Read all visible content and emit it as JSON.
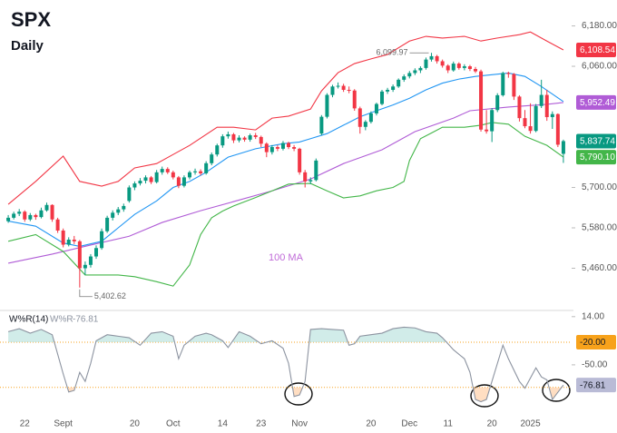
{
  "chart_data": [
    {
      "type": "candlestick",
      "title": "SPX",
      "subtitle": "Daily",
      "up_color": "#089981",
      "down_color": "#f23645",
      "xlim": [
        -1.5,
        102.5
      ],
      "ylim": [
        5340,
        6230
      ],
      "yticks": [
        {
          "value": 6180,
          "label": "6,180.00"
        },
        {
          "value": 6060,
          "label": "6,060.00"
        },
        {
          "value": 5700,
          "label": "5,700.00"
        },
        {
          "value": 5580,
          "label": "5,580.00"
        },
        {
          "value": 5460,
          "label": "5,460.00"
        }
      ],
      "grid": false,
      "high_label": "6,099.97",
      "low_label": "5,402.62",
      "last_close_label": "5,837.74",
      "ohlc": [
        [
          5600,
          5618,
          5595,
          5610
        ],
        [
          5610,
          5628,
          5605,
          5622
        ],
        [
          5622,
          5636,
          5615,
          5628
        ],
        [
          5628,
          5632,
          5598,
          5605
        ],
        [
          5605,
          5624,
          5600,
          5618
        ],
        [
          5618,
          5622,
          5604,
          5612
        ],
        [
          5612,
          5640,
          5608,
          5632
        ],
        [
          5632,
          5655,
          5628,
          5648
        ],
        [
          5648,
          5650,
          5598,
          5605
        ],
        [
          5605,
          5610,
          5565,
          5572
        ],
        [
          5572,
          5578,
          5522,
          5530
        ],
        [
          5530,
          5552,
          5525,
          5545
        ],
        [
          5545,
          5556,
          5532,
          5540
        ],
        [
          5540,
          5544,
          5402.62,
          5460
        ],
        [
          5460,
          5480,
          5440,
          5470
        ],
        [
          5470,
          5502,
          5462,
          5495
        ],
        [
          5495,
          5528,
          5488,
          5520
        ],
        [
          5520,
          5578,
          5515,
          5570
        ],
        [
          5570,
          5616,
          5565,
          5610
        ],
        [
          5610,
          5632,
          5602,
          5625
        ],
        [
          5625,
          5642,
          5618,
          5635
        ],
        [
          5635,
          5652,
          5628,
          5645
        ],
        [
          5660,
          5706,
          5655,
          5700
        ],
        [
          5700,
          5718,
          5692,
          5712
        ],
        [
          5712,
          5728,
          5706,
          5720
        ],
        [
          5720,
          5736,
          5712,
          5730
        ],
        [
          5730,
          5734,
          5710,
          5716
        ],
        [
          5716,
          5752,
          5712,
          5745
        ],
        [
          5745,
          5762,
          5738,
          5755
        ],
        [
          5755,
          5760,
          5740,
          5745
        ],
        [
          5745,
          5750,
          5724,
          5730
        ],
        [
          5730,
          5734,
          5698,
          5705
        ],
        [
          5705,
          5736,
          5700,
          5730
        ],
        [
          5730,
          5750,
          5724,
          5745
        ],
        [
          5745,
          5756,
          5738,
          5748
        ],
        [
          5748,
          5754,
          5736,
          5742
        ],
        [
          5742,
          5778,
          5738,
          5772
        ],
        [
          5772,
          5804,
          5766,
          5798
        ],
        [
          5798,
          5830,
          5792,
          5825
        ],
        [
          5825,
          5858,
          5818,
          5852
        ],
        [
          5852,
          5866,
          5845,
          5858
        ],
        [
          5858,
          5862,
          5832,
          5840
        ],
        [
          5840,
          5855,
          5834,
          5848
        ],
        [
          5848,
          5852,
          5836,
          5842
        ],
        [
          5842,
          5860,
          5836,
          5855
        ],
        [
          5855,
          5862,
          5844,
          5850
        ],
        [
          5850,
          5854,
          5820,
          5830
        ],
        [
          5830,
          5834,
          5790,
          5805
        ],
        [
          5805,
          5826,
          5798,
          5820
        ],
        [
          5820,
          5826,
          5808,
          5815
        ],
        [
          5815,
          5838,
          5810,
          5832
        ],
        [
          5832,
          5836,
          5814,
          5820
        ],
        [
          5820,
          5826,
          5808,
          5815
        ],
        [
          5815,
          5818,
          5738,
          5745
        ],
        [
          5745,
          5752,
          5700,
          5718
        ],
        [
          5718,
          5730,
          5710,
          5722
        ],
        [
          5722,
          5786,
          5718,
          5780
        ],
        [
          5860,
          5915,
          5855,
          5910
        ],
        [
          5910,
          5980,
          5905,
          5975
        ],
        [
          5975,
          6005,
          5968,
          6000
        ],
        [
          6000,
          6012,
          5994,
          6002
        ],
        [
          6002,
          6008,
          5984,
          5990
        ],
        [
          5990,
          6000,
          5980,
          5988
        ],
        [
          5988,
          5992,
          5928,
          5935
        ],
        [
          5935,
          5940,
          5860,
          5880
        ],
        [
          5880,
          5900,
          5870,
          5895
        ],
        [
          5895,
          5926,
          5890,
          5920
        ],
        [
          5920,
          5952,
          5914,
          5948
        ],
        [
          5948,
          5990,
          5944,
          5985
        ],
        [
          5985,
          5996,
          5978,
          5990
        ],
        [
          5990,
          6006,
          5984,
          6000
        ],
        [
          6000,
          6024,
          5996,
          6020
        ],
        [
          6020,
          6036,
          6014,
          6030
        ],
        [
          6030,
          6046,
          6024,
          6040
        ],
        [
          6040,
          6054,
          6034,
          6048
        ],
        [
          6048,
          6060,
          6040,
          6055
        ],
        [
          6055,
          6086,
          6050,
          6080
        ],
        [
          6080,
          6099.97,
          6074,
          6090
        ],
        [
          6090,
          6094,
          6068,
          6075
        ],
        [
          6075,
          6080,
          6056,
          6062
        ],
        [
          6062,
          6066,
          6040,
          6048
        ],
        [
          6048,
          6074,
          6044,
          6068
        ],
        [
          6068,
          6072,
          6050,
          6055
        ],
        [
          6055,
          6066,
          6048,
          6060
        ],
        [
          6060,
          6064,
          6046,
          6052
        ],
        [
          6052,
          6058,
          6040,
          6045
        ],
        [
          6045,
          6050,
          5866,
          5872
        ],
        [
          5872,
          5930,
          5860,
          5867
        ],
        [
          5867,
          5936,
          5835,
          5930
        ],
        [
          5930,
          5980,
          5924,
          5974
        ],
        [
          5974,
          6044,
          5970,
          6040
        ],
        [
          6040,
          6044,
          6026,
          6037
        ],
        [
          6037,
          6040,
          5960,
          5970
        ],
        [
          5970,
          5974,
          5896,
          5906
        ],
        [
          5906,
          5930,
          5876,
          5882
        ],
        [
          5882,
          5950,
          5860,
          5868
        ],
        [
          5868,
          5948,
          5864,
          5942
        ],
        [
          5942,
          6020,
          5936,
          5975
        ],
        [
          5975,
          5990,
          5898,
          5909
        ],
        [
          5909,
          5926,
          5874,
          5918
        ],
        [
          5918,
          5920,
          5820,
          5827
        ],
        [
          5800,
          5842,
          5773,
          5837.74
        ]
      ],
      "series": [
        {
          "color": "#f23645",
          "x": [
            0,
            5,
            10,
            13,
            17,
            20,
            23,
            27,
            30,
            33,
            38,
            41,
            45,
            48,
            51,
            55,
            57,
            60,
            63,
            66,
            69,
            73,
            76,
            79,
            83,
            86,
            89,
            93,
            95,
            98,
            101
          ],
          "values": [
            5650,
            5718,
            5793,
            5718,
            5704,
            5718,
            5758,
            5771,
            5798,
            5825,
            5879,
            5879,
            5871,
            5906,
            5912,
            5933,
            5987,
            6041,
            6068,
            6082,
            6095,
            6135,
            6149,
            6144,
            6149,
            6135,
            6144,
            6154,
            6162,
            6135,
            6108.54
          ],
          "value_labels": [
            null,
            null,
            null,
            null,
            null,
            null,
            null,
            null,
            null,
            null,
            null,
            null,
            null,
            null,
            null,
            null,
            null,
            null,
            null,
            null,
            null,
            null,
            null,
            null,
            null,
            null,
            null,
            null,
            null,
            null,
            "6,108.54"
          ]
        },
        {
          "color": "#2196f3",
          "x": [
            0,
            5,
            10,
            13,
            17,
            20,
            23,
            27,
            30,
            33,
            36,
            40,
            45,
            50,
            53,
            55,
            58,
            61,
            64,
            67,
            70,
            73,
            76,
            79,
            82,
            85,
            88,
            91,
            94,
            97,
            101
          ],
          "values": [
            5600,
            5585,
            5535,
            5525,
            5540,
            5580,
            5620,
            5660,
            5700,
            5718,
            5745,
            5790,
            5815,
            5830,
            5835,
            5845,
            5860,
            5885,
            5910,
            5928,
            5945,
            5965,
            5990,
            6010,
            6022,
            6030,
            6035,
            6040,
            6030,
            6000,
            5955
          ]
        },
        {
          "name": "100 MA",
          "color": "#b05cd6",
          "x": [
            0,
            8,
            15,
            22,
            28,
            35,
            41,
            48,
            55,
            61,
            68,
            74,
            81,
            84,
            91,
            98,
            101
          ],
          "values": [
            5475,
            5502,
            5529,
            5555,
            5596,
            5631,
            5658,
            5690,
            5725,
            5771,
            5812,
            5866,
            5906,
            5928,
            5939,
            5947,
            5952.49
          ],
          "value_labels": [
            null,
            null,
            null,
            null,
            null,
            null,
            null,
            null,
            null,
            null,
            null,
            null,
            null,
            null,
            null,
            null,
            "5,952.49"
          ]
        },
        {
          "color": "#43b649",
          "x": [
            0,
            5,
            10,
            14,
            17,
            20,
            23,
            27,
            30,
            33,
            35,
            37,
            39,
            41,
            45,
            48,
            51,
            55,
            58,
            61,
            64,
            67,
            70,
            72,
            73,
            75,
            77,
            79,
            83,
            86,
            88,
            91,
            94,
            98,
            101
          ],
          "values": [
            5540,
            5560,
            5510,
            5440,
            5440,
            5440,
            5435,
            5420,
            5407,
            5470,
            5560,
            5610,
            5630,
            5645,
            5670,
            5690,
            5710,
            5712,
            5690,
            5669,
            5675,
            5690,
            5700,
            5718,
            5780,
            5845,
            5862,
            5879,
            5879,
            5885,
            5893,
            5888,
            5852,
            5825,
            5790.1
          ],
          "value_labels": [
            null,
            null,
            null,
            null,
            null,
            null,
            null,
            null,
            null,
            null,
            null,
            null,
            null,
            null,
            null,
            null,
            null,
            null,
            null,
            null,
            null,
            null,
            null,
            null,
            null,
            null,
            null,
            null,
            null,
            null,
            null,
            null,
            null,
            null,
            "5,790.10"
          ]
        }
      ]
    },
    {
      "type": "line",
      "title": "W%R(14)",
      "xlim": [
        -1.5,
        102.5
      ],
      "ylim": [
        -114,
        21
      ],
      "yticks": [
        {
          "value": 14,
          "label": "14.00"
        },
        {
          "value": -50,
          "label": "-50.00"
        }
      ],
      "upper_level": {
        "value": -20,
        "label": "-20.00"
      },
      "lower_level": -80,
      "xticks": [
        {
          "value": 3,
          "label": "22"
        },
        {
          "value": 10,
          "label": "Sept"
        },
        {
          "value": 23,
          "label": "20"
        },
        {
          "value": 30,
          "label": "Oct"
        },
        {
          "value": 39,
          "label": "14"
        },
        {
          "value": 46,
          "label": "23"
        },
        {
          "value": 53,
          "label": "Nov"
        },
        {
          "value": 66,
          "label": "20"
        },
        {
          "value": 73,
          "label": "Dec"
        },
        {
          "value": 80,
          "label": "11"
        },
        {
          "value": 88,
          "label": "20"
        },
        {
          "value": 95,
          "label": "2025"
        }
      ],
      "series": [
        {
          "name": "W%R",
          "color": "#8c93a0",
          "x": [
            0,
            2,
            4,
            6,
            8,
            10,
            11,
            12,
            13,
            14,
            15,
            16,
            18,
            20,
            22,
            24,
            26,
            28,
            30,
            31,
            32,
            34,
            36,
            37,
            39,
            40,
            42,
            44,
            46,
            48,
            50,
            51,
            52,
            53,
            54,
            55,
            57,
            59,
            61,
            62,
            63,
            64,
            66,
            68,
            70,
            72,
            74,
            76,
            78,
            79,
            81,
            83,
            84,
            85,
            86,
            87,
            89,
            90,
            91,
            93,
            94,
            96,
            97,
            98,
            99,
            101
          ],
          "values": [
            -6,
            -2,
            -8,
            -3,
            -10,
            -62,
            -86,
            -84,
            -60,
            -72,
            -48,
            -18,
            -10,
            -12,
            -14,
            -24,
            -8,
            -6,
            -12,
            -42,
            -24,
            -12,
            -8,
            -10,
            -18,
            -27,
            -6,
            -12,
            -22,
            -18,
            -28,
            -48,
            -92,
            -90,
            -72,
            -3,
            -2,
            -3,
            -4,
            -24,
            -22,
            -12,
            -10,
            -8,
            -2,
            0,
            -1,
            -6,
            -8,
            -14,
            -30,
            -42,
            -60,
            -96,
            -99,
            -96,
            -48,
            -24,
            -42,
            -72,
            -81,
            -54,
            -66,
            -70,
            -96,
            -76.81
          ]
        }
      ]
    }
  ]
}
